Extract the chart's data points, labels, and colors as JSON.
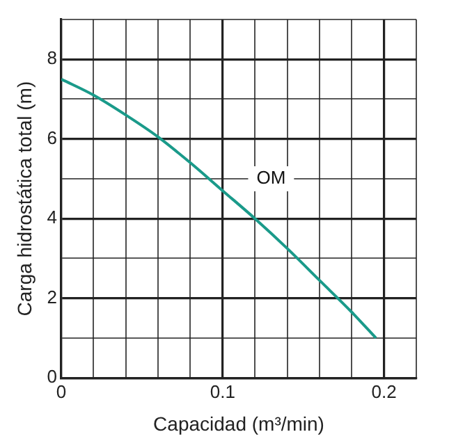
{
  "chart_data": {
    "type": "line",
    "xlabel": "Capacidad (m³/min)",
    "ylabel": "Carga hidrostática total (m)",
    "xlim": [
      0,
      0.22
    ],
    "xticks": [
      0,
      {
        "value": 0.02,
        "label": null
      },
      {
        "value": 0.04,
        "label": null
      },
      {
        "value": 0.06,
        "label": null
      },
      {
        "value": 0.08,
        "label": null
      },
      0.1,
      {
        "value": 0.12,
        "label": null
      },
      {
        "value": 0.14,
        "label": null
      },
      {
        "value": 0.16,
        "label": null
      },
      {
        "value": 0.18,
        "label": null
      },
      0.2,
      {
        "value": 0.22,
        "label": null
      }
    ],
    "ylim": [
      0,
      9
    ],
    "yticks": [
      0,
      {
        "value": 1,
        "label": null
      },
      2,
      {
        "value": 3,
        "label": null
      },
      4,
      {
        "value": 5,
        "label": null
      },
      6,
      {
        "value": 7,
        "label": null
      },
      8,
      {
        "value": 9,
        "label": null
      }
    ],
    "series": [
      {
        "color": "#1a9a8a",
        "x": [
          0,
          0.02,
          0.04,
          0.06,
          0.08,
          0.1,
          0.12,
          0.14,
          0.16,
          0.18,
          0.195
        ],
        "values": [
          7.5,
          7.1,
          6.6,
          6.05,
          5.4,
          4.7,
          4.0,
          3.25,
          2.45,
          1.65,
          1.0
        ]
      }
    ],
    "annotations": [
      {
        "text": "OM",
        "x": 0.13,
        "y": 5
      }
    ],
    "grid": true,
    "legend": false,
    "marker": "none",
    "line_style": "solid"
  }
}
